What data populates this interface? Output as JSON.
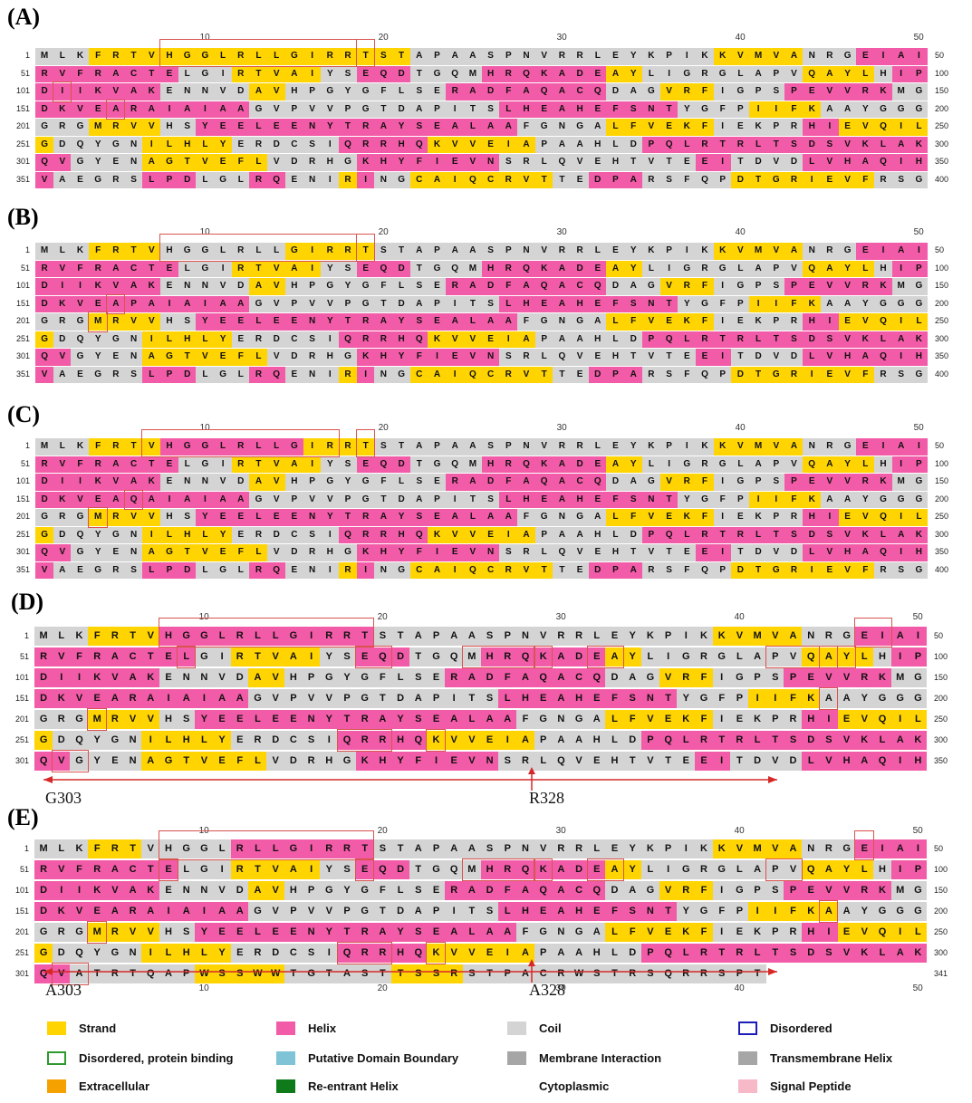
{
  "colors": {
    "strand": "#ffd400",
    "helix": "#f25ba7",
    "coil": "#d4d4d4",
    "box": "#d9534f",
    "arrow": "#d62828"
  },
  "panels": [
    {
      "label": "(A)",
      "ruler": [
        "10",
        "20",
        "30",
        "40",
        "50"
      ],
      "rows": [
        {
          "start": "1",
          "end": "50",
          "seq": "MLKFRTVHGGLRLLGIRRTSTAPAASPNVRRLEYKPIKKVMVANRGEIAI",
          "ss": "CCCEEEEEEEEEEEEEEEEEECCCCCCCCCCCCCCCCCEEEEECCCHHHH"
        },
        {
          "start": "51",
          "end": "100",
          "seq": "RVFRACTELGIRTVAIYSEQDTGQMHRQKADEAYLIGRGLAPVQAYLHIP",
          "ss": "HHHHHHHHCCCEEEEECCHHHCCCCHHHHHHHEECCCCCCCCCEEEECHH"
        },
        {
          "start": "101",
          "end": "150",
          "seq": "DIIKVAKENNVDAVHPGYGFLSERADFAQACQDAGVRFIGPSPEVVRKMG",
          "ss": "HHHHHHHCCCCCEECCCCCCCCCHHHHHHHHHCCCEEECCCCHHHHHHCC"
        },
        {
          "start": "151",
          "end": "200",
          "seq": "DKVEARAIAIAAGVPVVPGTDAPITSLHEAHEFSNTYGFPIIFKAAYGGG",
          "ss": "HHHHHHHHHHHHCCCCCCCCCCCCCCHHHHHHHHHHCCCCEEEECCCCCC"
        },
        {
          "start": "201",
          "end": "250",
          "seq": "GRGMRVVHSYEELEENYTRAYSEALAAFGNGALFVEKFIEKPRHIEVQIL",
          "ss": "CCCEEEECCHHHHHHHHHHHHHHHHHHCCCCCEEEEEECCCCCHHEEEEE"
        },
        {
          "start": "251",
          "end": "300",
          "seq": "GDQYGNILHLYERDCSIQRRHQKVVEIAPAAHLDPQLRTRLTSDSVKLAK",
          "ss": "ECCCCCEEEEECCCCCCHHHHHEEEEEECCCCCCHHHHHHHHHHHHHHHH"
        },
        {
          "start": "301",
          "end": "350",
          "seq": "QVGYENAGTVEFLVDRHGKHYFIEVNSRLQVEHTVTEEITDVDLVHAQIH",
          "ss": "HHCCCCEEEEEEECCCCCHHHHHHHHCCCCCCCCCCCHHCCCCHHHHHHH"
        },
        {
          "start": "351",
          "end": "400",
          "seq": "VAEGRSLPDLGLRQENIRINGCAIQCRVTTEDPARSFQPDTGRIEVFRSG",
          "ss": "HCCCCCHHHCCCHHCCCEHCCEEEEEEEECCHHHCCCCCEEEEEEEECCC"
        }
      ],
      "boxes": [
        [
          1,
          8,
          1,
          12
        ],
        [
          1,
          19,
          1,
          1
        ],
        [
          3,
          2,
          3,
          1
        ],
        [
          4,
          5,
          4,
          1
        ]
      ]
    },
    {
      "label": "(B)",
      "ruler": [
        "10",
        "20",
        "30",
        "40",
        "50"
      ],
      "rows": [
        {
          "start": "1",
          "end": "50",
          "seq": "MLKFRTVHGGLRLLGIRRTSTAPAASPNVRRLEYKPIKKVMVANRGEIAI",
          "ss": "CCCEEEECCCCCCCEEEEECCCCCCCCCCCCCCCCCCCEEEEECCCHHHH"
        },
        {
          "start": "51",
          "end": "100",
          "seq": "RVFRACTELGIRTVAIYSEQDTGQMHRQKADEAYLIGRGLAPVQAYLHIP",
          "ss": "HHHHHHHHCCCEEEEECCHHHCCCCHHHHHHHEECCCCCCCCCEEEECHH"
        },
        {
          "start": "101",
          "end": "150",
          "seq": "DIIKVAKENNVDAVHPGYGFLSERADFAQACQDAGVRFIGPSPEVVRKMG",
          "ss": "HHHHHHHCCCCCEECCCCCCCCCHHHHHHHHHCCCEEECCCCHHHHHHCC"
        },
        {
          "start": "151",
          "end": "200",
          "seq": "DKVEAPAIAIAAGVPVVPGTDAPITSLHEAHEFSNTYGFPIIFKAAYGGG",
          "ss": "HHHHHHHHHHHHCCCCCCCCCCCCCCHHHHHHHHHHCCCCEEEECCCCCC"
        },
        {
          "start": "201",
          "end": "250",
          "seq": "GRGMRVVHSYEELEENYTRAYSEALAAFGNGALFVEKFIEKPRHIEVQIL",
          "ss": "CCCEEEECCHHHHHHHHHHHHHHHHHHCCCCCEEEEEECCCCCHHEEEEE"
        },
        {
          "start": "251",
          "end": "300",
          "seq": "GDQYGNILHLYERDCSIQRRHQKVVEIAPAAHLDPQLRTRLTSDSVKLAK",
          "ss": "ECCCCCEEEEECCCCCCHHHHHEEEEEECCCCCCHHHHHHHHHHHHHHHH"
        },
        {
          "start": "301",
          "end": "350",
          "seq": "QVGYENAGTVEFLVDRHGKHYFIEVNSRLQVEHTVTEEITDVDLVHAQIH",
          "ss": "HHCCCCEEEEEEECCCCCHHHHHHHHCCCCCCCCCCCHHCCCCHHHHHHH"
        },
        {
          "start": "351",
          "end": "400",
          "seq": "VAEGRSLPDLGLRQENIRINGCAIQCRVTTEDPARSFQPDTGRIEVFRSG",
          "ss": "HCCCCCHHHCCCHHCCCEHCCEEEEEEEECCHHHCCCCCEEEEEEEECCC"
        }
      ],
      "boxes": [
        [
          1,
          8,
          1,
          12
        ],
        [
          1,
          19,
          1,
          1
        ],
        [
          4,
          5,
          4,
          1
        ],
        [
          5,
          4,
          5,
          1
        ]
      ]
    },
    {
      "label": "(C)",
      "ruler": [
        "10",
        "20",
        "30",
        "40",
        "50"
      ],
      "rows": [
        {
          "start": "1",
          "end": "50",
          "seq": "MLKFRTVHGGLRLLGIRRTSTAPAASPNVRRLEYKPIKKVMVANRGEIAI",
          "ss": "CCCEEEEHHHHHHHHEEEECCCCCCCCCCCCCCCCCCCEEEEECCCHHHH"
        },
        {
          "start": "51",
          "end": "100",
          "seq": "RVFRACTELGIRTVAIYSEQDTGQMHRQKADEAYLIGRGLAPVQAYLHIP",
          "ss": "HHHHHHHHCCCEEEEECCHHHCCCCHHHHHHHEECCCCCCCCCEEEECHH"
        },
        {
          "start": "101",
          "end": "150",
          "seq": "DIIKVAKENNVDAVHPGYGFLSERADFAQACQDAGVRFIGPSPEVVRKMG",
          "ss": "HHHHHHHCCCCCEECCCCCCCCCHHHHHHHHHCCCEEECCCCHHHHHHCC"
        },
        {
          "start": "151",
          "end": "200",
          "seq": "DKVEAQAIAIAAGVPVVPGTDAPITSLHEAHEFSNTYGFPIIFKAAYGGG",
          "ss": "HHHHHHHHHHHHCCCCCCCCCCCCCCHHHHHHHHHHCCCCEEEECCCCCC"
        },
        {
          "start": "201",
          "end": "250",
          "seq": "GRGMRVVHSYEELEENYTRAYSEALAAFGNGALFVEKFIEKPRHIEVQIL",
          "ss": "CCCEEEECCHHHHHHHHHHHHHHHHHHCCCCCEEEEEECCCCCHHEEEEE"
        },
        {
          "start": "251",
          "end": "300",
          "seq": "GDQYGNILHLYERDCSIQRRHQKVVEIAPAAHLDPQLRTRLTSDSVKLAK",
          "ss": "ECCCCCEEEEECCCCCCHHHHHEEEEEECCCCCCHHHHHHHHHHHHHHHH"
        },
        {
          "start": "301",
          "end": "350",
          "seq": "QVGYENAGTVEFLVDRHGKHYFIEVNSRLQVEHTVTEEITDVDLVHAQIH",
          "ss": "HHCCCCEEEEEEECCCCCHHHHHHHHCCCCCCCCCCCHHCCCCHHHHHHH"
        },
        {
          "start": "351",
          "end": "400",
          "seq": "VAEGRSLPDLGLRQENIRINGCAIQCRVTTEDPARSFQPDTGRIEVFRSG",
          "ss": "HCCCCCHHHCCCHHCCCEHCCEEEEEEEECCHHHCCCCCEEEEEEEECCC"
        }
      ],
      "boxes": [
        [
          1,
          7,
          1,
          11
        ],
        [
          1,
          19,
          1,
          1
        ],
        [
          4,
          6,
          4,
          1
        ],
        [
          5,
          4,
          5,
          1
        ]
      ]
    },
    {
      "label": "(D)",
      "ruler": [
        "10",
        "20",
        "30",
        "40",
        "50"
      ],
      "rows": [
        {
          "start": "1",
          "end": "50",
          "seq": "MLKFRTVHGGLRLLGIRRTSTAPAASPNVRRLEYKPIKKVMVANRGEIAI",
          "ss": "CCCEEEEHHHHHHHHHHHHCCCCCCCCCCCCCCCCCCCEEEEECCCHHHH"
        },
        {
          "start": "51",
          "end": "100",
          "seq": "RVFRACTELGIRTVAIYSEQDTGQMHRQKADEAYLIGRGLAPVQAYLHIP",
          "ss": "HHHHHHHHHCCEEEEECCHHHCCCCHHHHHHHEECCCCCCCCCEEEECHH"
        },
        {
          "start": "101",
          "end": "150",
          "seq": "DIIKVAKENNVDAVHPGYGFLSERADFAQACQDAGVRFIGPSPEVVRKMG",
          "ss": "HHHHHHHCCCCCEECCCCCCCCCHHHHHHHHHCCCEEECCCCHHHHHHCC"
        },
        {
          "start": "151",
          "end": "200",
          "seq": "DKVEARAIAIAAGVPVVPGTDAPITSLHEAHEFSNTYGFPIIFKAAYGGG",
          "ss": "HHHHHHHHHHHHCCCCCCCCCCCCCCHHHHHHHHHHCCCCEEEECCCCCC"
        },
        {
          "start": "201",
          "end": "250",
          "seq": "GRGMRVVHSYEELEENYTRAYSEALAAFGNGALFVEKFIEKPRHIEVQIL",
          "ss": "CCCEEEECCHHHHHHHHHHHHHHHHHHCCCCCEEEEEECCCCCHHEEEEE"
        },
        {
          "start": "251",
          "end": "300",
          "seq": "GDQYGNILHLYERDCSIQRRHQKVVEIAPAAHLDPQLRTRLTSDSVKLAK",
          "ss": "ECCCCCEEEEECCCCCCHHHHHEEEEEECCCCCCHHHHHHHHHHHHHHHH"
        },
        {
          "start": "301",
          "end": "350",
          "seq": "QVGYENAGTVEFLVDRHGKHYFIEVNSRLQVEHTVTEEITDVDLVHAQIH",
          "ss": "HHCCCCEEEEEEECCCCCHHHHHHHHCCCCCCCCCCCHHCCCCHHHHHHH"
        }
      ],
      "boxes": [
        [
          1,
          8,
          1,
          12
        ],
        [
          1,
          47,
          1,
          2
        ],
        [
          2,
          9,
          2,
          1
        ],
        [
          2,
          19,
          2,
          2
        ],
        [
          2,
          25,
          2,
          4
        ],
        [
          2,
          29,
          2,
          1
        ],
        [
          2,
          32,
          2,
          2
        ],
        [
          2,
          42,
          2,
          4
        ],
        [
          2,
          45,
          2,
          2
        ],
        [
          4,
          45,
          4,
          1
        ],
        [
          5,
          4,
          5,
          1
        ],
        [
          6,
          18,
          6,
          3
        ],
        [
          6,
          23,
          6,
          1
        ],
        [
          7,
          2,
          7,
          2
        ]
      ],
      "annotations": {
        "left_label": "G303",
        "right_label": "R328"
      }
    },
    {
      "label": "(E)",
      "ruler": [
        "10",
        "20",
        "30",
        "40",
        "50"
      ],
      "ruler_bottom": [
        "10",
        "20",
        "30",
        "40",
        "50"
      ],
      "rows": [
        {
          "start": "1",
          "end": "50",
          "seq": "MLKFRTVHGGLRLLGIRRTSTAPAASPNVRRLEYKPIKKVMVANRGEIAI",
          "ss": "CCCEEECCCCCHHHHHHHHCCCCCCCCCCCCCCCCCCCEEEEECCCHHHH"
        },
        {
          "start": "51",
          "end": "100",
          "seq": "RVFRACTELGIRTVAIYSEQDTGQMHRQKADEAYLIGRGLAPVQAYLHIP",
          "ss": "HHHHHHHHCCCEEEEECCHHHCCCCHHHHHHHEECCCCCCCCCEEEECHH"
        },
        {
          "start": "101",
          "end": "150",
          "seq": "DIIKVAKENNVDAVHPGYGFLSERADFAQACQDAGVRFIGPSPEVVRKMG",
          "ss": "HHHHHHHCCCCCEECCCCCCCCCHHHHHHHHHCCCEEECCCCHHHHHHCC"
        },
        {
          "start": "151",
          "end": "200",
          "seq": "DKVEARAIAIAAGVPVVPGTDAPITSLHEAHEFSNTYGFPIIFKAAYGGG",
          "ss": "HHHHHHHHHHHHCCCCCCCCCCCCCCHHHHHHHHHHCCCCEEEEECCCCC"
        },
        {
          "start": "201",
          "end": "250",
          "seq": "GRGMRVVHSYEELEENYTRAYSEALAAFGNGALFVEKFIEKPRHIEVQIL",
          "ss": "CCCEEEECCHHHHHHHHHHHHHHHHHHCCCCCEEEEEECCCCCHHEEEEE"
        },
        {
          "start": "251",
          "end": "300",
          "seq": "GDQYGNILHLYERDCSIQRRHQKVVEIAPAAHLDPQLRTRLTSDSVKLAK",
          "ss": "ECCCCCEEEEECCCCCCHHHHHEEEEEECCCCCCHHHHHHHHHHHHHHHH"
        },
        {
          "start": "301",
          "end": "341",
          "seq": "QVATRTQAPWSSWWTGTASTTSSRSTPACRWSTRSQRRSPT",
          "ss": "HHCCCCCCCEEEEECCCCCCEEEECCCCCCCCCCCCCCCCC"
        }
      ],
      "boxes": [
        [
          1,
          8,
          1,
          12
        ],
        [
          1,
          47,
          1,
          1
        ],
        [
          2,
          8,
          2,
          1
        ],
        [
          2,
          19,
          2,
          1
        ],
        [
          2,
          25,
          2,
          4
        ],
        [
          2,
          29,
          2,
          1
        ],
        [
          2,
          32,
          2,
          2
        ],
        [
          2,
          42,
          2,
          2
        ],
        [
          4,
          45,
          4,
          1
        ],
        [
          5,
          4,
          5,
          1
        ],
        [
          6,
          18,
          6,
          3
        ],
        [
          6,
          23,
          6,
          1
        ],
        [
          7,
          2,
          7,
          2
        ]
      ],
      "annotations": {
        "left_label": "A303",
        "right_label": "A328"
      }
    }
  ],
  "legend": [
    {
      "label": "Strand",
      "fill": "#ffd400",
      "border": "#ffd400"
    },
    {
      "label": "Helix",
      "fill": "#f25ba7",
      "border": "#f25ba7"
    },
    {
      "label": "Coil",
      "fill": "#d4d4d4",
      "border": "#d4d4d4"
    },
    {
      "label": "Disordered",
      "fill": "#ffffff",
      "border": "#1c1cb8"
    },
    {
      "label": "Disordered, protein binding",
      "fill": "#ffffff",
      "border": "#2e9a2e"
    },
    {
      "label": "Putative Domain Boundary",
      "fill": "#7fc4d6",
      "border": "#7fc4d6"
    },
    {
      "label": "Membrane Interaction",
      "fill": "#a6a6a6",
      "border": "#a6a6a6"
    },
    {
      "label": "Transmembrane Helix",
      "fill": "#a6a6a6",
      "border": "#a6a6a6"
    },
    {
      "label": "Extracellular",
      "fill": "#f5a100",
      "border": "#f5a100"
    },
    {
      "label": "Re-entrant Helix",
      "fill": "#0f7a1a",
      "border": "#0f7a1a"
    },
    {
      "label": "Cytoplasmic",
      "fill": "#ffffff",
      "border": "#ffffff"
    },
    {
      "label": "Signal Peptide",
      "fill": "#f7b8c8",
      "border": "#f7b8c8"
    }
  ]
}
